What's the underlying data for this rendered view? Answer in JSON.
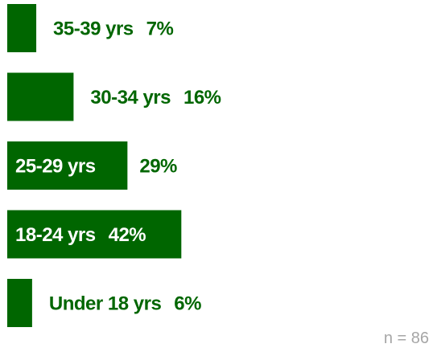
{
  "chart_data": {
    "type": "bar",
    "orientation": "horizontal",
    "categories": [
      "35-39 yrs",
      "30-34 yrs",
      "25-29 yrs",
      "18-24 yrs",
      "Under 18 yrs"
    ],
    "values": [
      7,
      16,
      29,
      42,
      6
    ],
    "value_labels": [
      "7%",
      "16%",
      "29%",
      "42%",
      "6%"
    ],
    "color": "#006600",
    "annotation": "n = 86"
  }
}
